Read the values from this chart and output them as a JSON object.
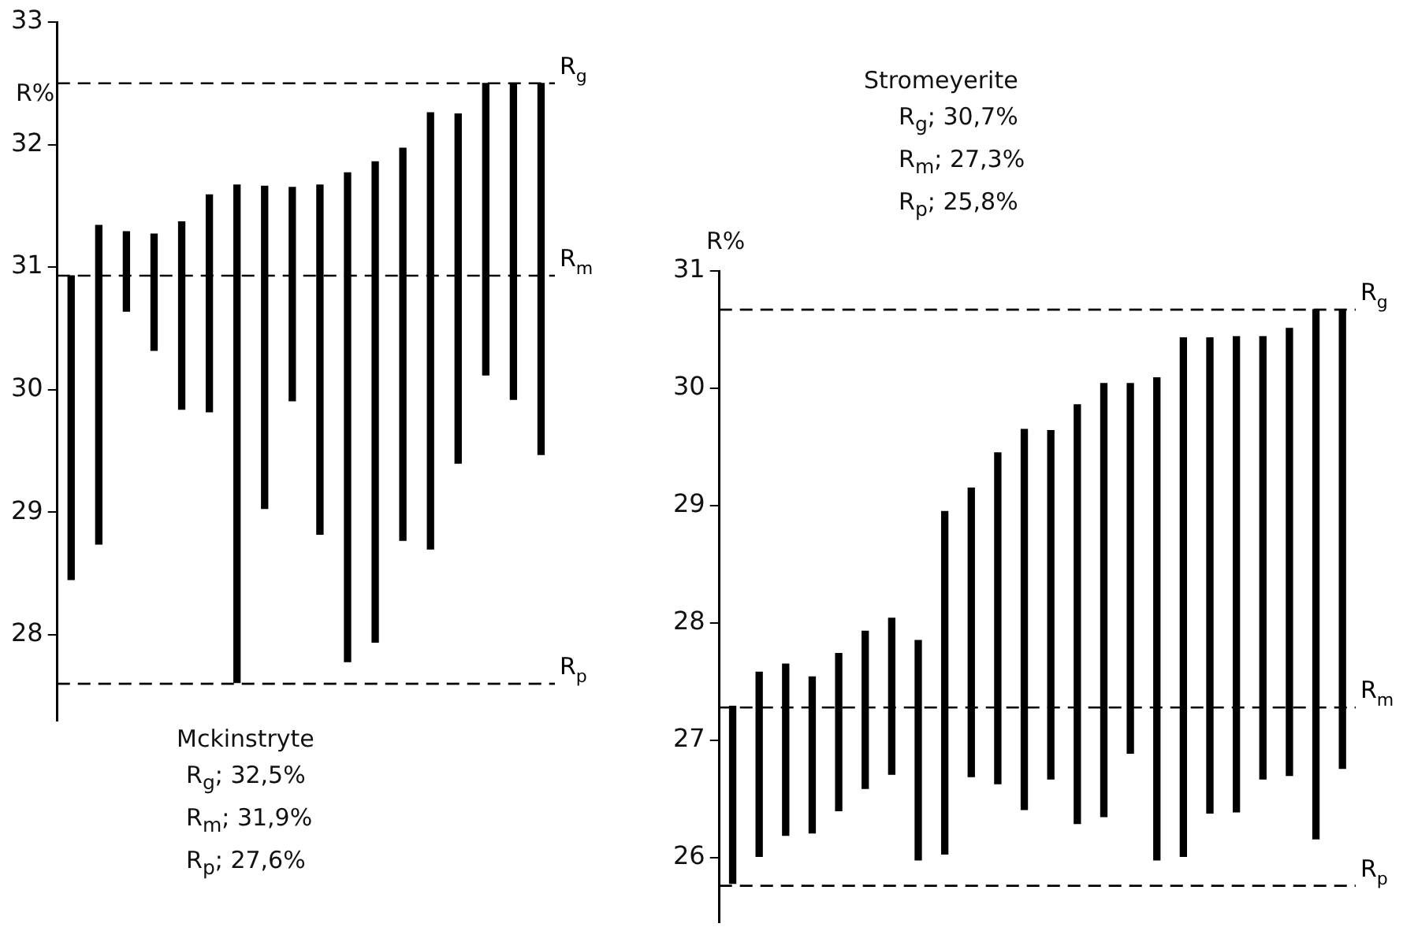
{
  "chart_data": [
    {
      "type": "bar",
      "title": "Mckinstryte",
      "ylabel": "R%",
      "categories": [
        null,
        null,
        null,
        null,
        null,
        null,
        null,
        null,
        null,
        null,
        null,
        null,
        null,
        null,
        null,
        null,
        null,
        null
      ],
      "series": [
        {
          "color": "#000000",
          "base": [
            28.45,
            28.74,
            30.64,
            30.32,
            29.84,
            29.82,
            27.61,
            29.03,
            29.91,
            28.82,
            27.78,
            27.94,
            28.77,
            28.7,
            29.4,
            30.12,
            29.92,
            29.47
          ],
          "values": [
            2.48,
            2.6,
            0.65,
            0.95,
            1.53,
            1.77,
            4.06,
            2.63,
            1.74,
            2.85,
            3.99,
            3.92,
            3.2,
            3.56,
            2.85,
            2.38,
            2.58,
            3.03
          ]
        }
      ],
      "ylim": [
        27.3,
        33
      ],
      "yticks": [
        28,
        29,
        30,
        31,
        32,
        33
      ],
      "tick_labels": "y",
      "grid": false,
      "legend": false,
      "ref_lines": [
        {
          "axis": "y",
          "value": 32.5,
          "label": "R$_{g}$",
          "color": "#000000",
          "line_style": "dashed"
        },
        {
          "axis": "y",
          "value": 30.93,
          "label": "R$_{m}$",
          "color": "#000000",
          "line_style": "dashed"
        },
        {
          "axis": "y",
          "value": 27.6,
          "label": "R$_{p}$",
          "color": "#000000",
          "line_style": "dashed"
        }
      ],
      "annotations": [
        "R$_{g}$; 32,5%",
        "R$_{m}$; 31,9%",
        "R$_{p}$; 27,6%"
      ]
    },
    {
      "type": "bar",
      "title": "Stromeyerite",
      "ylabel": "R%",
      "categories": [
        null,
        null,
        null,
        null,
        null,
        null,
        null,
        null,
        null,
        null,
        null,
        null,
        null,
        null,
        null,
        null,
        null,
        null,
        null,
        null,
        null,
        null,
        null,
        null
      ],
      "series": [
        {
          "color": "#000000",
          "base": [
            25.78,
            26.01,
            26.19,
            26.21,
            26.4,
            26.59,
            26.71,
            25.98,
            26.03,
            26.69,
            26.63,
            26.41,
            26.67,
            26.29,
            26.35,
            26.89,
            25.98,
            26.01,
            26.38,
            26.39,
            26.67,
            26.7,
            26.16,
            26.76
          ],
          "values": [
            1.51,
            1.57,
            1.46,
            1.33,
            1.34,
            1.34,
            1.33,
            1.87,
            2.92,
            2.46,
            2.82,
            3.24,
            2.97,
            3.57,
            3.69,
            3.15,
            4.11,
            4.42,
            4.05,
            4.05,
            3.77,
            3.81,
            4.51,
            3.91
          ]
        }
      ],
      "ylim": [
        25.45,
        31
      ],
      "yticks": [
        26,
        27,
        28,
        29,
        30,
        31
      ],
      "tick_labels": "y",
      "grid": false,
      "legend": false,
      "ref_lines": [
        {
          "axis": "y",
          "value": 30.67,
          "label": "R$_{g}$",
          "color": "#000000",
          "line_style": "dashed"
        },
        {
          "axis": "y",
          "value": 27.28,
          "label": "R$_{m}$",
          "color": "#000000",
          "line_style": "dashed"
        },
        {
          "axis": "y",
          "value": 25.76,
          "label": "R$_{p}$",
          "color": "#000000",
          "line_style": "dashed"
        }
      ],
      "annotations": [
        "R$_{g}$; 30,7%",
        "R$_{m}$; 27,3%",
        "R$_{p}$; 25,8%"
      ]
    }
  ]
}
